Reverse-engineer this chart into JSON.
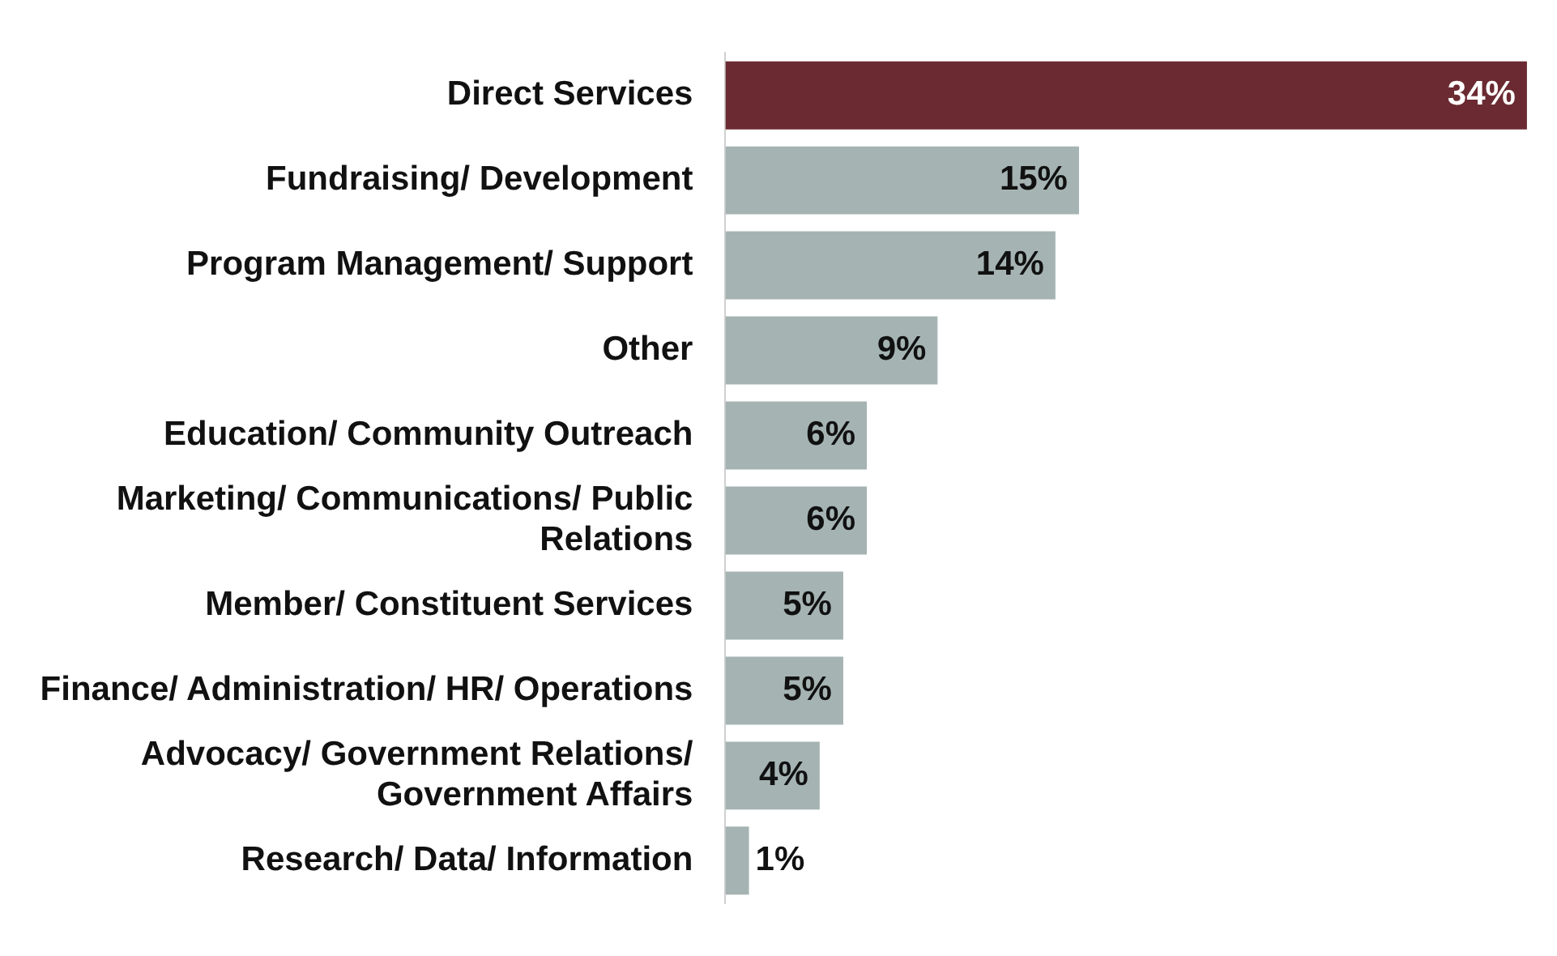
{
  "chart_data": {
    "type": "bar",
    "orientation": "horizontal",
    "categories": [
      "Direct Services",
      "Fundraising/ Development",
      "Program Management/ Support",
      "Other",
      "Education/ Community Outreach",
      "Marketing/ Communications/ Public Relations",
      "Member/ Constituent Services",
      "Finance/ Administration/ HR/ Operations",
      "Advocacy/ Government Relations/ Government Affairs",
      "Research/ Data/ Information"
    ],
    "values": [
      34,
      15,
      14,
      9,
      6,
      6,
      5,
      5,
      4,
      1
    ],
    "value_labels": [
      "34%",
      "15%",
      "14%",
      "9%",
      "6%",
      "6%",
      "5%",
      "5%",
      "4%",
      "1%"
    ],
    "colors": [
      "#6b2a32",
      "#a5b4b3",
      "#a5b4b3",
      "#a5b4b3",
      "#a5b4b3",
      "#a5b4b3",
      "#a5b4b3",
      "#a5b4b3",
      "#a5b4b3",
      "#a5b4b3"
    ],
    "legend": false
  }
}
